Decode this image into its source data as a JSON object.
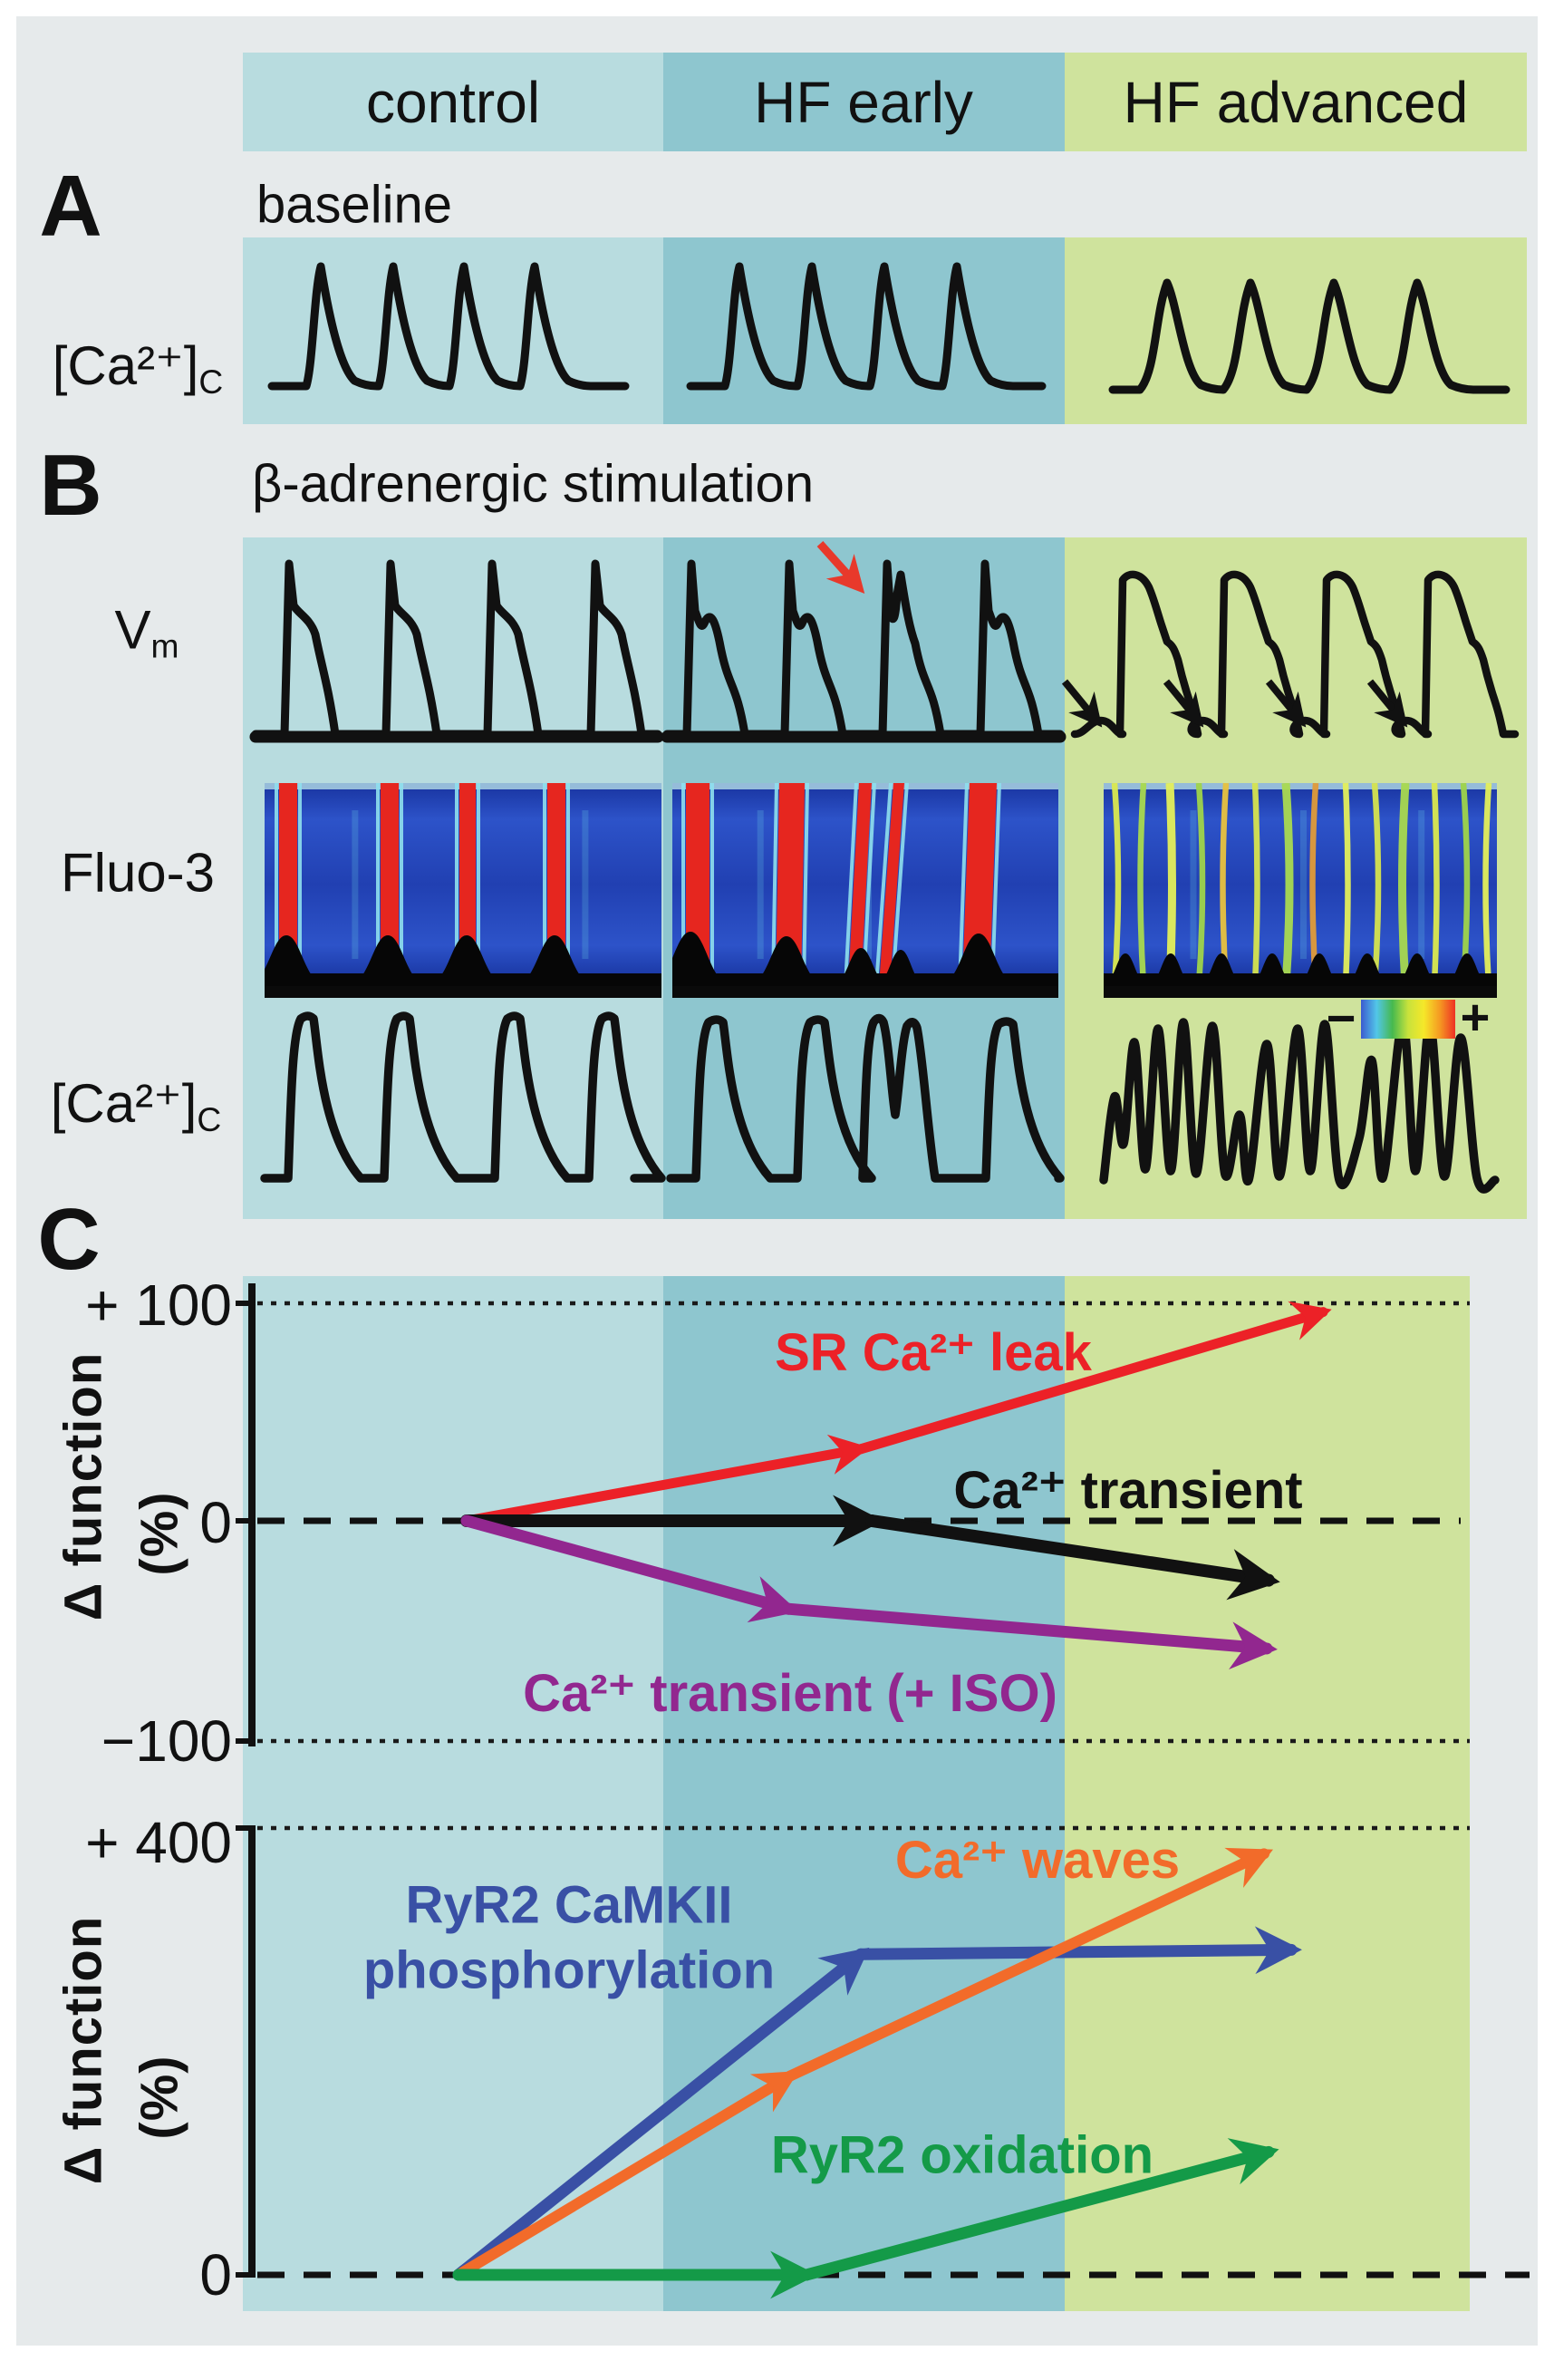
{
  "figure": {
    "page_bg": "#ffffff",
    "bg": "#e6eaeb",
    "columns": [
      {
        "label": "control",
        "color": "#b8dcdf"
      },
      {
        "label": "HF early",
        "color": "#8ec6cf"
      },
      {
        "label": "HF advanced",
        "color": "#cfe39d"
      }
    ]
  },
  "panelA": {
    "letter": "A",
    "title": "baseline",
    "row_label": {
      "main": "[Ca²⁺]",
      "sub": "C"
    },
    "description": "cytosolic Ca transients, 4 per condition; smaller and slower in HF advanced",
    "transients_per_column": [
      4,
      4,
      4
    ]
  },
  "panelB": {
    "letter": "B",
    "title": "β-adrenergic stimulation",
    "row_vm": {
      "main": "V",
      "sub": "m"
    },
    "row_fluo": "Fluo-3",
    "row_ca": {
      "main": "[Ca²⁺]",
      "sub": "C"
    },
    "annotations": {
      "ead_arrow_color": "#e8392b",
      "dad_arrow_color": "#111111",
      "ead_note": "red arrow: early afterdepolarization in HF early",
      "dad_note": "black arrows: delayed afterdepolarizations in HF advanced"
    },
    "colorbar": {
      "minus": "−",
      "plus": "+",
      "gradient": [
        "#3b5bd0",
        "#52c6e8",
        "#46b94e",
        "#c8e23c",
        "#f5e829",
        "#f59b22",
        "#ee3124"
      ]
    },
    "fluo_colors": {
      "field_blue": "#2547bd",
      "stripe_red": "#e6261f",
      "stripe_edge_cyan": "#8fe0ee",
      "silhouette_black": "#060606"
    }
  },
  "panelC": {
    "letter": "C"
  },
  "chart_data": [
    {
      "type": "line",
      "categories": [
        "control",
        "HF early",
        "HF advanced"
      ],
      "ylabel": "Δ function (%)",
      "ylabel_parts": [
        "Δ function",
        "(%)"
      ],
      "ylim": [
        -100,
        100
      ],
      "yticks": [
        "+ 100",
        "0",
        "−100"
      ],
      "gridlines": {
        "top_dotted": 100,
        "zero_dashed": 0,
        "bottom_dotted": -100
      },
      "legend_position": "inline labels on arrows",
      "series": [
        {
          "name": "SR Ca²⁺ leak",
          "color": "#ec2127",
          "values": [
            0,
            33,
            96
          ]
        },
        {
          "name": "Ca²⁺ transient",
          "color": "#111111",
          "values": [
            0,
            0,
            -27
          ]
        },
        {
          "name": "Ca²⁺ transient (+ ISO)",
          "color": "#92278f",
          "values": [
            0,
            -40,
            -58
          ]
        }
      ]
    },
    {
      "type": "line",
      "categories": [
        "control",
        "HF early",
        "HF advanced"
      ],
      "ylabel": "Δ function (%)",
      "ylabel_parts": [
        "Δ function",
        "(%)"
      ],
      "ylim": [
        0,
        400
      ],
      "yticks": [
        "+ 400",
        "0"
      ],
      "gridlines": {
        "top_dotted": 400,
        "zero_dashed": 0
      },
      "legend_position": "inline labels on arrows",
      "series": [
        {
          "name": "RyR2 CaMKII phosphorylation",
          "name_lines": [
            "RyR2 CaMKII",
            "phosphorylation"
          ],
          "color": "#3950a5",
          "values": [
            0,
            287,
            291
          ]
        },
        {
          "name": "Ca²⁺ waves",
          "color": "#f26b2a",
          "values": [
            0,
            178,
            377
          ]
        },
        {
          "name": "RyR2 oxidation",
          "color": "#149a48",
          "values": [
            0,
            0,
            110
          ]
        }
      ]
    }
  ]
}
